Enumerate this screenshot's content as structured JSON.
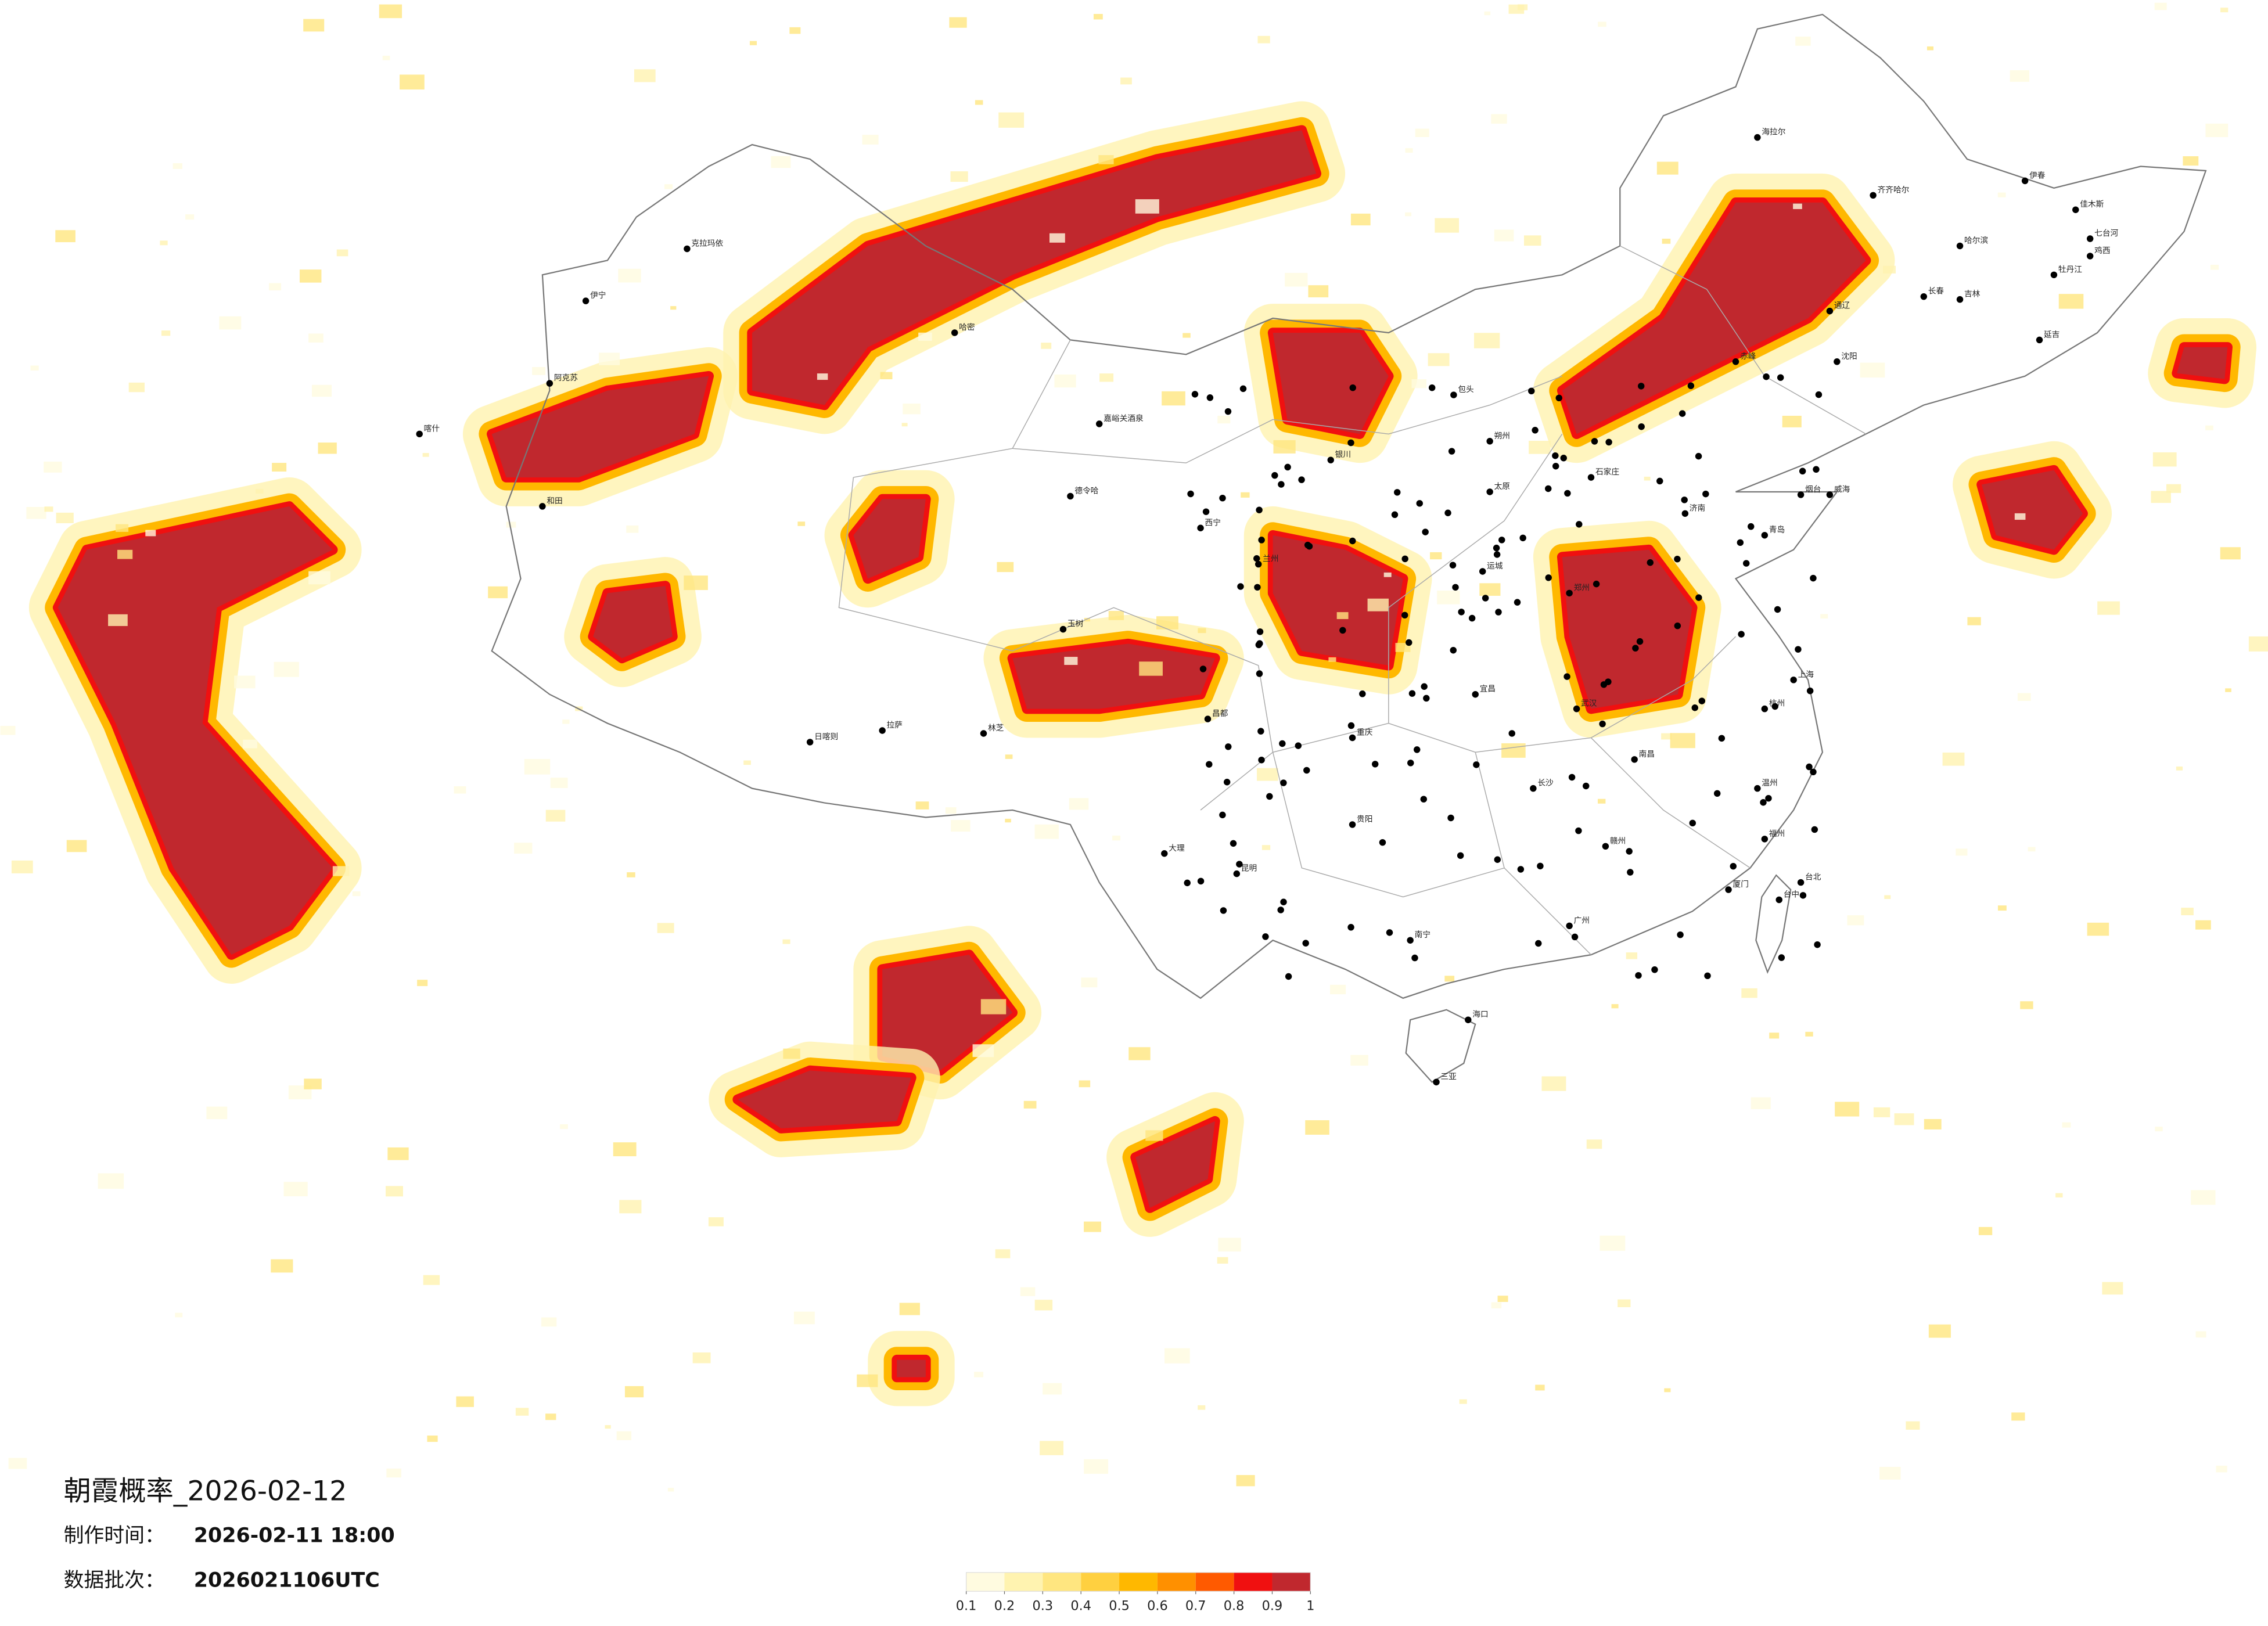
{
  "header": {
    "title": "朝霞概率_2026-02-12",
    "made_label": "制作时间：",
    "made_time": "2026-02-11 18:00",
    "batch_label": "数据批次：",
    "batch": "2026021106UTC"
  },
  "legend": {
    "colors": [
      "#fffbe0",
      "#fff3b0",
      "#ffe680",
      "#ffd040",
      "#ffb800",
      "#ff9000",
      "#ff5a00",
      "#f01010",
      "#c0282e"
    ],
    "ticks": [
      0.1,
      0.2,
      0.3,
      0.4,
      0.5,
      0.6,
      0.7,
      0.8,
      0.9,
      1
    ]
  },
  "cities": [
    "克拉玛依",
    "伊宁",
    "阿克苏",
    "和田",
    "喀什",
    "哈密",
    "嘉峪关酒泉",
    "德令哈",
    "日喀则",
    "拉萨",
    "林芝",
    "玉树",
    "昌都",
    "西宁",
    "兰州",
    "银川",
    "包头",
    "石家庄",
    "太原",
    "郑州",
    "济南",
    "青岛",
    "烟台",
    "威海",
    "上海",
    "杭州",
    "武汉",
    "长沙",
    "南昌",
    "福州",
    "厦门",
    "台北",
    "台中",
    "广州",
    "海口",
    "三亚",
    "南宁",
    "昆明",
    "贵阳",
    "重庆",
    "大理",
    "哈尔滨",
    "长春",
    "沈阳",
    "齐齐哈尔",
    "海拉尔",
    "佳木斯",
    "牡丹江",
    "吉林",
    "延吉",
    "伊春",
    "七台河",
    "鸡西",
    "通辽",
    "赤峰",
    "朔州",
    "运城",
    "宜昌",
    "赣州",
    "温州"
  ]
}
